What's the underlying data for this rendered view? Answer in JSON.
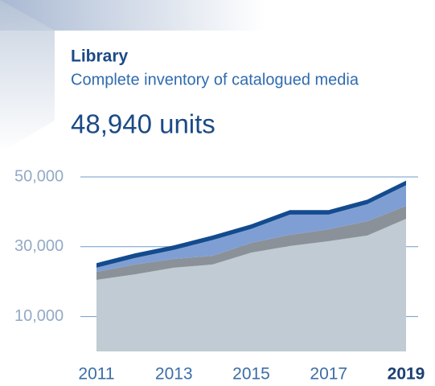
{
  "chart_data": {
    "type": "stacked-area",
    "title": "Library",
    "subtitle": "Complete inventory of catalogued media",
    "headline": "48,940 units",
    "categories": [
      "2011",
      null,
      "2013",
      null,
      "2015",
      null,
      "2017",
      null,
      "2019"
    ],
    "series": [
      {
        "color": "#c0cbd3",
        "values": [
          20500,
          22100,
          24000,
          24900,
          28300,
          30200,
          31600,
          33200,
          38000
        ]
      },
      {
        "color": "#8b9198",
        "values": [
          2300,
          2800,
          2500,
          2500,
          2800,
          3200,
          3400,
          4100,
          3700
        ]
      },
      {
        "color": "#7f9fd4",
        "values": [
          1200,
          1900,
          2600,
          4500,
          4000,
          5800,
          4200,
          4900,
          5900
        ]
      },
      {
        "color": "#134b8e",
        "values": [
          1300,
          1300,
          1300,
          1300,
          1300,
          1300,
          1300,
          1300,
          1340
        ]
      }
    ],
    "ylim": [
      0,
      50000
    ],
    "yticks": [
      {
        "value": 10000,
        "label": "10,000"
      },
      {
        "value": 30000,
        "label": "30,000"
      },
      {
        "value": 50000,
        "label": "50,000"
      }
    ],
    "grid": true
  }
}
